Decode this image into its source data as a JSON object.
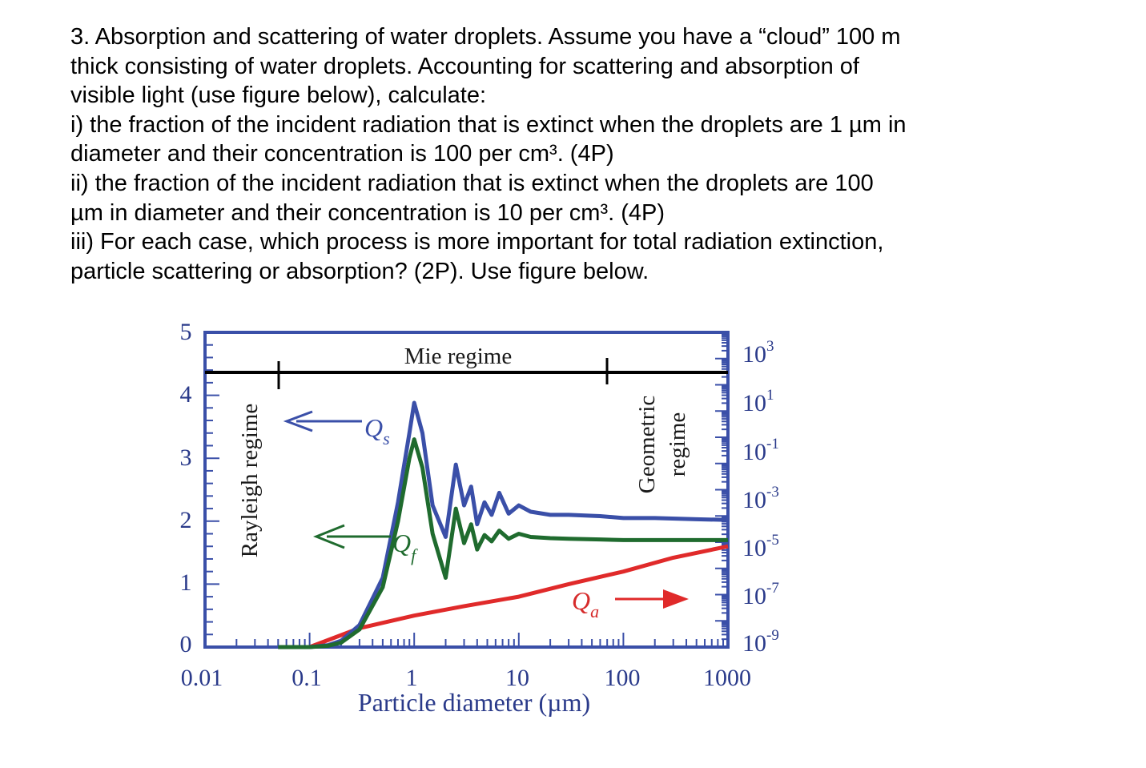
{
  "problem": {
    "lines": [
      "3. Absorption and scattering of water droplets. Assume you have a “cloud” 100 m",
      "thick consisting of water droplets. Accounting for scattering and absorption of",
      "visible light (use figure below), calculate:",
      "i) the fraction of the incident radiation that is extinct when the droplets are 1 µm in",
      "diameter and their concentration is 100 per cm³. (4P)",
      "ii) the fraction of the incident radiation that is extinct when the droplets are 100",
      "µm in diameter and their concentration is 10 per cm³. (4P)",
      "iii) For each case, which process is more important for total radiation extinction,",
      "particle scattering or absorption? (2P). Use figure below."
    ]
  },
  "figure": {
    "regime_labels": {
      "mie": "Mie regime",
      "rayleigh": "Rayleigh regime",
      "geometric_line1": "Geometric",
      "geometric_line2": "regime"
    },
    "curve_labels": {
      "qs": "Q",
      "qs_sub": "s",
      "qf": "Q",
      "qf_sub": "f",
      "qa": "Q",
      "qa_sub": "a"
    },
    "colors": {
      "qs": "#3a4fa8",
      "qf": "#1f6b2e",
      "qa": "#e02a2a",
      "frame": "#3a4fa8",
      "axis_text": "#2a3a8a"
    }
  },
  "chart_data": {
    "type": "line",
    "xlabel": "Particle diameter (µm)",
    "x_scale": "log",
    "xlim": [
      0.01,
      1000
    ],
    "x_ticks": [
      "0.01",
      "0.1",
      "1",
      "10",
      "100",
      "1000"
    ],
    "ylim": [
      0,
      5
    ],
    "y_ticks": [
      "0",
      "1",
      "2",
      "3",
      "4",
      "5"
    ],
    "right_axis_ticks": [
      {
        "base": "10",
        "exp": "3"
      },
      {
        "base": "10",
        "exp": "1"
      },
      {
        "base": "10",
        "exp": "-1"
      },
      {
        "base": "10",
        "exp": "-3"
      },
      {
        "base": "10",
        "exp": "-5"
      },
      {
        "base": "10",
        "exp": "-7"
      },
      {
        "base": "10",
        "exp": "-9"
      }
    ],
    "series": [
      {
        "key": "qs",
        "x": [
          0.05,
          0.1,
          0.15,
          0.2,
          0.3,
          0.5,
          0.7,
          0.9,
          1.0,
          1.2,
          1.5,
          2.0,
          2.5,
          3.0,
          3.5,
          4.0,
          4.7,
          5.5,
          6.5,
          8.0,
          10,
          13,
          20,
          30,
          60,
          100,
          200,
          500,
          1000
        ],
        "y": [
          0.0,
          0.0,
          0.03,
          0.1,
          0.35,
          1.1,
          2.3,
          3.4,
          3.88,
          3.4,
          2.25,
          1.75,
          2.9,
          2.25,
          2.55,
          1.95,
          2.3,
          2.1,
          2.45,
          2.12,
          2.25,
          2.15,
          2.1,
          2.1,
          2.08,
          2.05,
          2.05,
          2.03,
          2.02
        ]
      },
      {
        "key": "qf",
        "x": [
          0.05,
          0.1,
          0.15,
          0.2,
          0.3,
          0.5,
          0.7,
          0.9,
          1.0,
          1.2,
          1.5,
          2.0,
          2.5,
          3.0,
          3.5,
          4.0,
          4.7,
          5.5,
          6.5,
          8.0,
          10,
          13,
          20,
          30,
          60,
          100,
          200,
          500,
          1000
        ],
        "y": [
          0.0,
          0.0,
          0.02,
          0.07,
          0.28,
          0.95,
          2.0,
          3.0,
          3.3,
          2.85,
          1.8,
          1.1,
          2.2,
          1.65,
          1.95,
          1.55,
          1.78,
          1.68,
          1.85,
          1.72,
          1.8,
          1.75,
          1.73,
          1.72,
          1.71,
          1.7,
          1.7,
          1.7,
          1.7
        ]
      },
      {
        "key": "qa",
        "x": [
          0.1,
          0.3,
          1,
          3,
          10,
          30,
          100,
          300,
          1000
        ],
        "y": [
          0.0,
          0.3,
          0.5,
          0.65,
          0.8,
          1.0,
          1.2,
          1.42,
          1.6
        ]
      }
    ],
    "mie_bar": {
      "y": 4.3,
      "x_ticks": [
        0.05,
        75
      ]
    }
  }
}
